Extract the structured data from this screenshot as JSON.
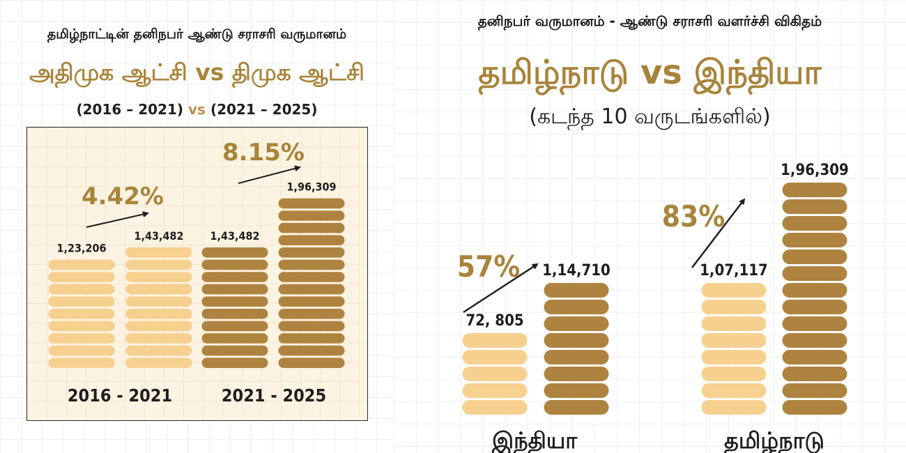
{
  "left": {
    "title_line1": "தமிழ்நாட்டின் தனிநபர் ஆண்டு சராசரி வருமானம்",
    "title_line2_a": "அதிமுக ஆட்சி",
    "title_line2_vs": "vs",
    "title_line2_b": "திமுக ஆட்சி",
    "period_a": "(2016 – 2021)",
    "period_vs": "vs",
    "period_b": "(2021 – 2025)"
  },
  "right": {
    "title_line1": "தனிநபர் வருமானம் - ஆண்டு சராசரி வளர்ச்சி விகிதம்",
    "title_line2_a": "தமிழ்நாடு",
    "title_line2_vs": "vs",
    "title_line2_b": "இந்தியா",
    "subtitle": "(கடந்த 10 வருடங்களில்)"
  },
  "colors": {
    "light": "#f6d08f",
    "dark": "#ae8340",
    "accent": "#a8843a",
    "text": "#1e1e1e"
  },
  "chart_data": [
    {
      "type": "bar",
      "categories": [
        "2016 - 2021",
        "2021 - 2025"
      ],
      "bars": [
        {
          "group": "2016 - 2021",
          "label": "1,23,206",
          "value": 123206,
          "color": "light"
        },
        {
          "group": "2016 - 2021",
          "label": "1,43,482",
          "value": 143482,
          "color": "light"
        },
        {
          "group": "2021 - 2025",
          "label": "1,43,482",
          "value": 143482,
          "color": "dark"
        },
        {
          "group": "2021 - 2025",
          "label": "1,96,309",
          "value": 196309,
          "color": "dark"
        }
      ],
      "growth": [
        {
          "group": "2016 - 2021",
          "label": "4.42%"
        },
        {
          "group": "2021 - 2025",
          "label": "8.15%"
        }
      ]
    },
    {
      "type": "bar",
      "categories": [
        "இந்தியா",
        "தமிழ்நாடு"
      ],
      "bars": [
        {
          "group": "இந்தியா",
          "label": "72, 805",
          "value": 72805,
          "color": "light"
        },
        {
          "group": "இந்தியா",
          "label": "1,14,710",
          "value": 114710,
          "color": "dark"
        },
        {
          "group": "தமிழ்நாடு",
          "label": "1,07,117",
          "value": 107117,
          "color": "light"
        },
        {
          "group": "தமிழ்நாடு",
          "label": "1,96,309",
          "value": 196309,
          "color": "dark"
        }
      ],
      "growth": [
        {
          "group": "இந்தியா",
          "label": "57%"
        },
        {
          "group": "தமிழ்நாடு",
          "label": "83%"
        }
      ]
    }
  ]
}
